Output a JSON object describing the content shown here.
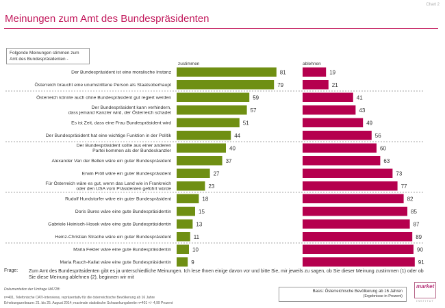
{
  "page": {
    "chart_tag": "Chart 2",
    "title": "Meinungen zum Amt des Bundespräsidenten",
    "intro_box": "Folgende Meinungen stimmen zum Amt des Bundespräsidenten -",
    "question_label": "Frage:",
    "question_text": "Zum Amt des Bundespräsidenten gibt es ja unterschiedliche Meinungen. Ich lese Ihnen einige davon vor und bitte Sie, mir jeweils zu sagen, ob Sie dieser Meinung zustimmen (1) oder ob Sie diese Meinung ablehnen (2), beginnen wir mit",
    "doc_title": "Dokumentation der Umfrage MA72B:",
    "doc_lines": [
      "n=401, Telefonische CATI-Interviews, repräsentativ für die österreichische Bevölkerung ab 16 Jahre",
      "Erhebungszeitraum: 21. bis 25. August 2014; maximale statistische Schwankungsbreite n=401 +/- 4,99 Prozent"
    ],
    "base_line1": "Basis: Österreichische Bevölkerung ab 16 Jahren",
    "base_line2": "(Ergebnisse in Prozent)",
    "logo_word": "market",
    "logo_sub": "INSTITUT",
    "colors": {
      "agree": "#6f8f13",
      "disagree": "#b5004e",
      "title": "#c2185b",
      "rule": "#c2185b"
    }
  },
  "chart_data": {
    "type": "bar",
    "categories": [
      "Der Bundespräsident ist eine moralische Instanz",
      "Österreich braucht eine unumstrittene Person als Staatsoberhaupt",
      "Österreich könnte auch ohne Bundespräsident gut regiert werden",
      "Der Bundespräsident kann verhindern,\ndass jemand Kanzler wird, der Österreich schadet",
      "Es ist Zeit, dass eine Frau Bundespräsident wird",
      "Der Bundespräsident hat eine wichtige Funktion in der Politik",
      "Der Bundespräsident sollte aus einer anderen\nPartei kommen als der Bundeskanzler",
      "Alexander Van der Bellen wäre ein guter Bundespräsident",
      "Erwin Pröll wäre ein guter Bundespräsident",
      "Für Österreich wäre es gut, wenn das Land wie in Frankreich\noder den USA vom Präsidenten geführt würde",
      "Rudolf Hundstorfer wäre ein guter Bundespräsident",
      "Doris Bures wäre eine gute Bundespräsidentin",
      "Gabriele Heinisch-Hosek wäre eine gute Bundespräsidentin",
      "Heinz-Christian Strache wäre ein guter Bundespräsident",
      "Maria Fekter wäre eine gute Bundespräsidentin",
      "Maria Rauch-Kallat wäre eine gute Bundespräsidentin"
    ],
    "series": [
      {
        "name": "zustimmen",
        "values": [
          81,
          79,
          59,
          57,
          51,
          44,
          40,
          37,
          27,
          23,
          18,
          15,
          13,
          11,
          10,
          9
        ]
      },
      {
        "name": "ablehnen",
        "values": [
          19,
          21,
          41,
          43,
          49,
          56,
          60,
          63,
          73,
          77,
          82,
          85,
          87,
          89,
          90,
          91
        ]
      }
    ],
    "xlim": [
      0,
      100
    ],
    "grid": false,
    "legend": "column headers above bars"
  }
}
